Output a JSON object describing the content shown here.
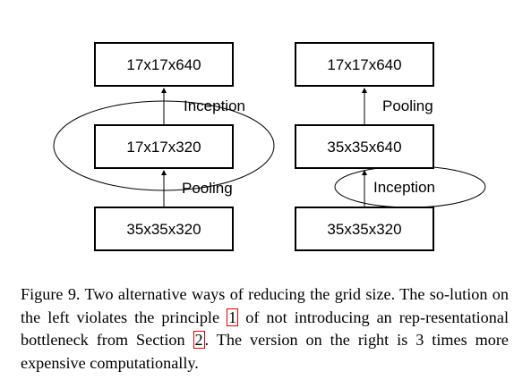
{
  "left_diagram": {
    "top_box": "17x17x640",
    "middle_box": "17x17x320",
    "bottom_box": "35x35x320",
    "upper_op": "Inception",
    "lower_op": "Pooling"
  },
  "right_diagram": {
    "top_box": "17x17x640",
    "middle_box": "35x35x640",
    "bottom_box": "35x35x320",
    "upper_op": "Pooling",
    "lower_op": "Inception"
  },
  "caption": {
    "part1": "Figure 9. Two alternative ways of reducing the grid size. The so-lution on the left violates the principle ",
    "ref1": "1",
    "part2": " of not introducing an rep-resentational bottleneck from Section ",
    "ref2": "2",
    "part3": ". The version on the right is 3 times more expensive computationally."
  },
  "colors": {
    "stroke": "#000000",
    "reference_box": "#e00000"
  }
}
